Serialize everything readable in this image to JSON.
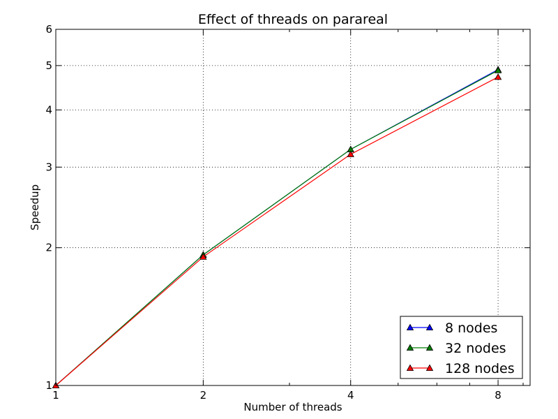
{
  "chart_data": {
    "type": "line",
    "title": "Effect of threads on parareal",
    "xlabel": "Number of threads",
    "ylabel": "Speedup",
    "x_scale": "log2",
    "y_scale": "log",
    "xlim": [
      1,
      9.3
    ],
    "ylim": [
      1,
      6
    ],
    "x_ticks": [
      1,
      2,
      4,
      8
    ],
    "y_ticks": [
      1,
      2,
      3,
      4,
      5,
      6
    ],
    "x_tick_labels": [
      "1",
      "2",
      "4",
      "8"
    ],
    "y_tick_labels": [
      "1",
      "2",
      "3",
      "4",
      "5",
      "6"
    ],
    "grid": true,
    "legend_position": "lower-right",
    "x": [
      1,
      2,
      4,
      8
    ],
    "series": [
      {
        "name": "8 nodes",
        "color": "#0000ff",
        "marker": "triangle",
        "values": [
          1.0,
          1.93,
          3.28,
          4.9
        ]
      },
      {
        "name": "32 nodes",
        "color": "#007f00",
        "marker": "triangle",
        "values": [
          1.0,
          1.93,
          3.28,
          4.88
        ]
      },
      {
        "name": "128 nodes",
        "color": "#ff0000",
        "marker": "triangle",
        "values": [
          1.0,
          1.91,
          3.2,
          4.72
        ]
      }
    ]
  }
}
